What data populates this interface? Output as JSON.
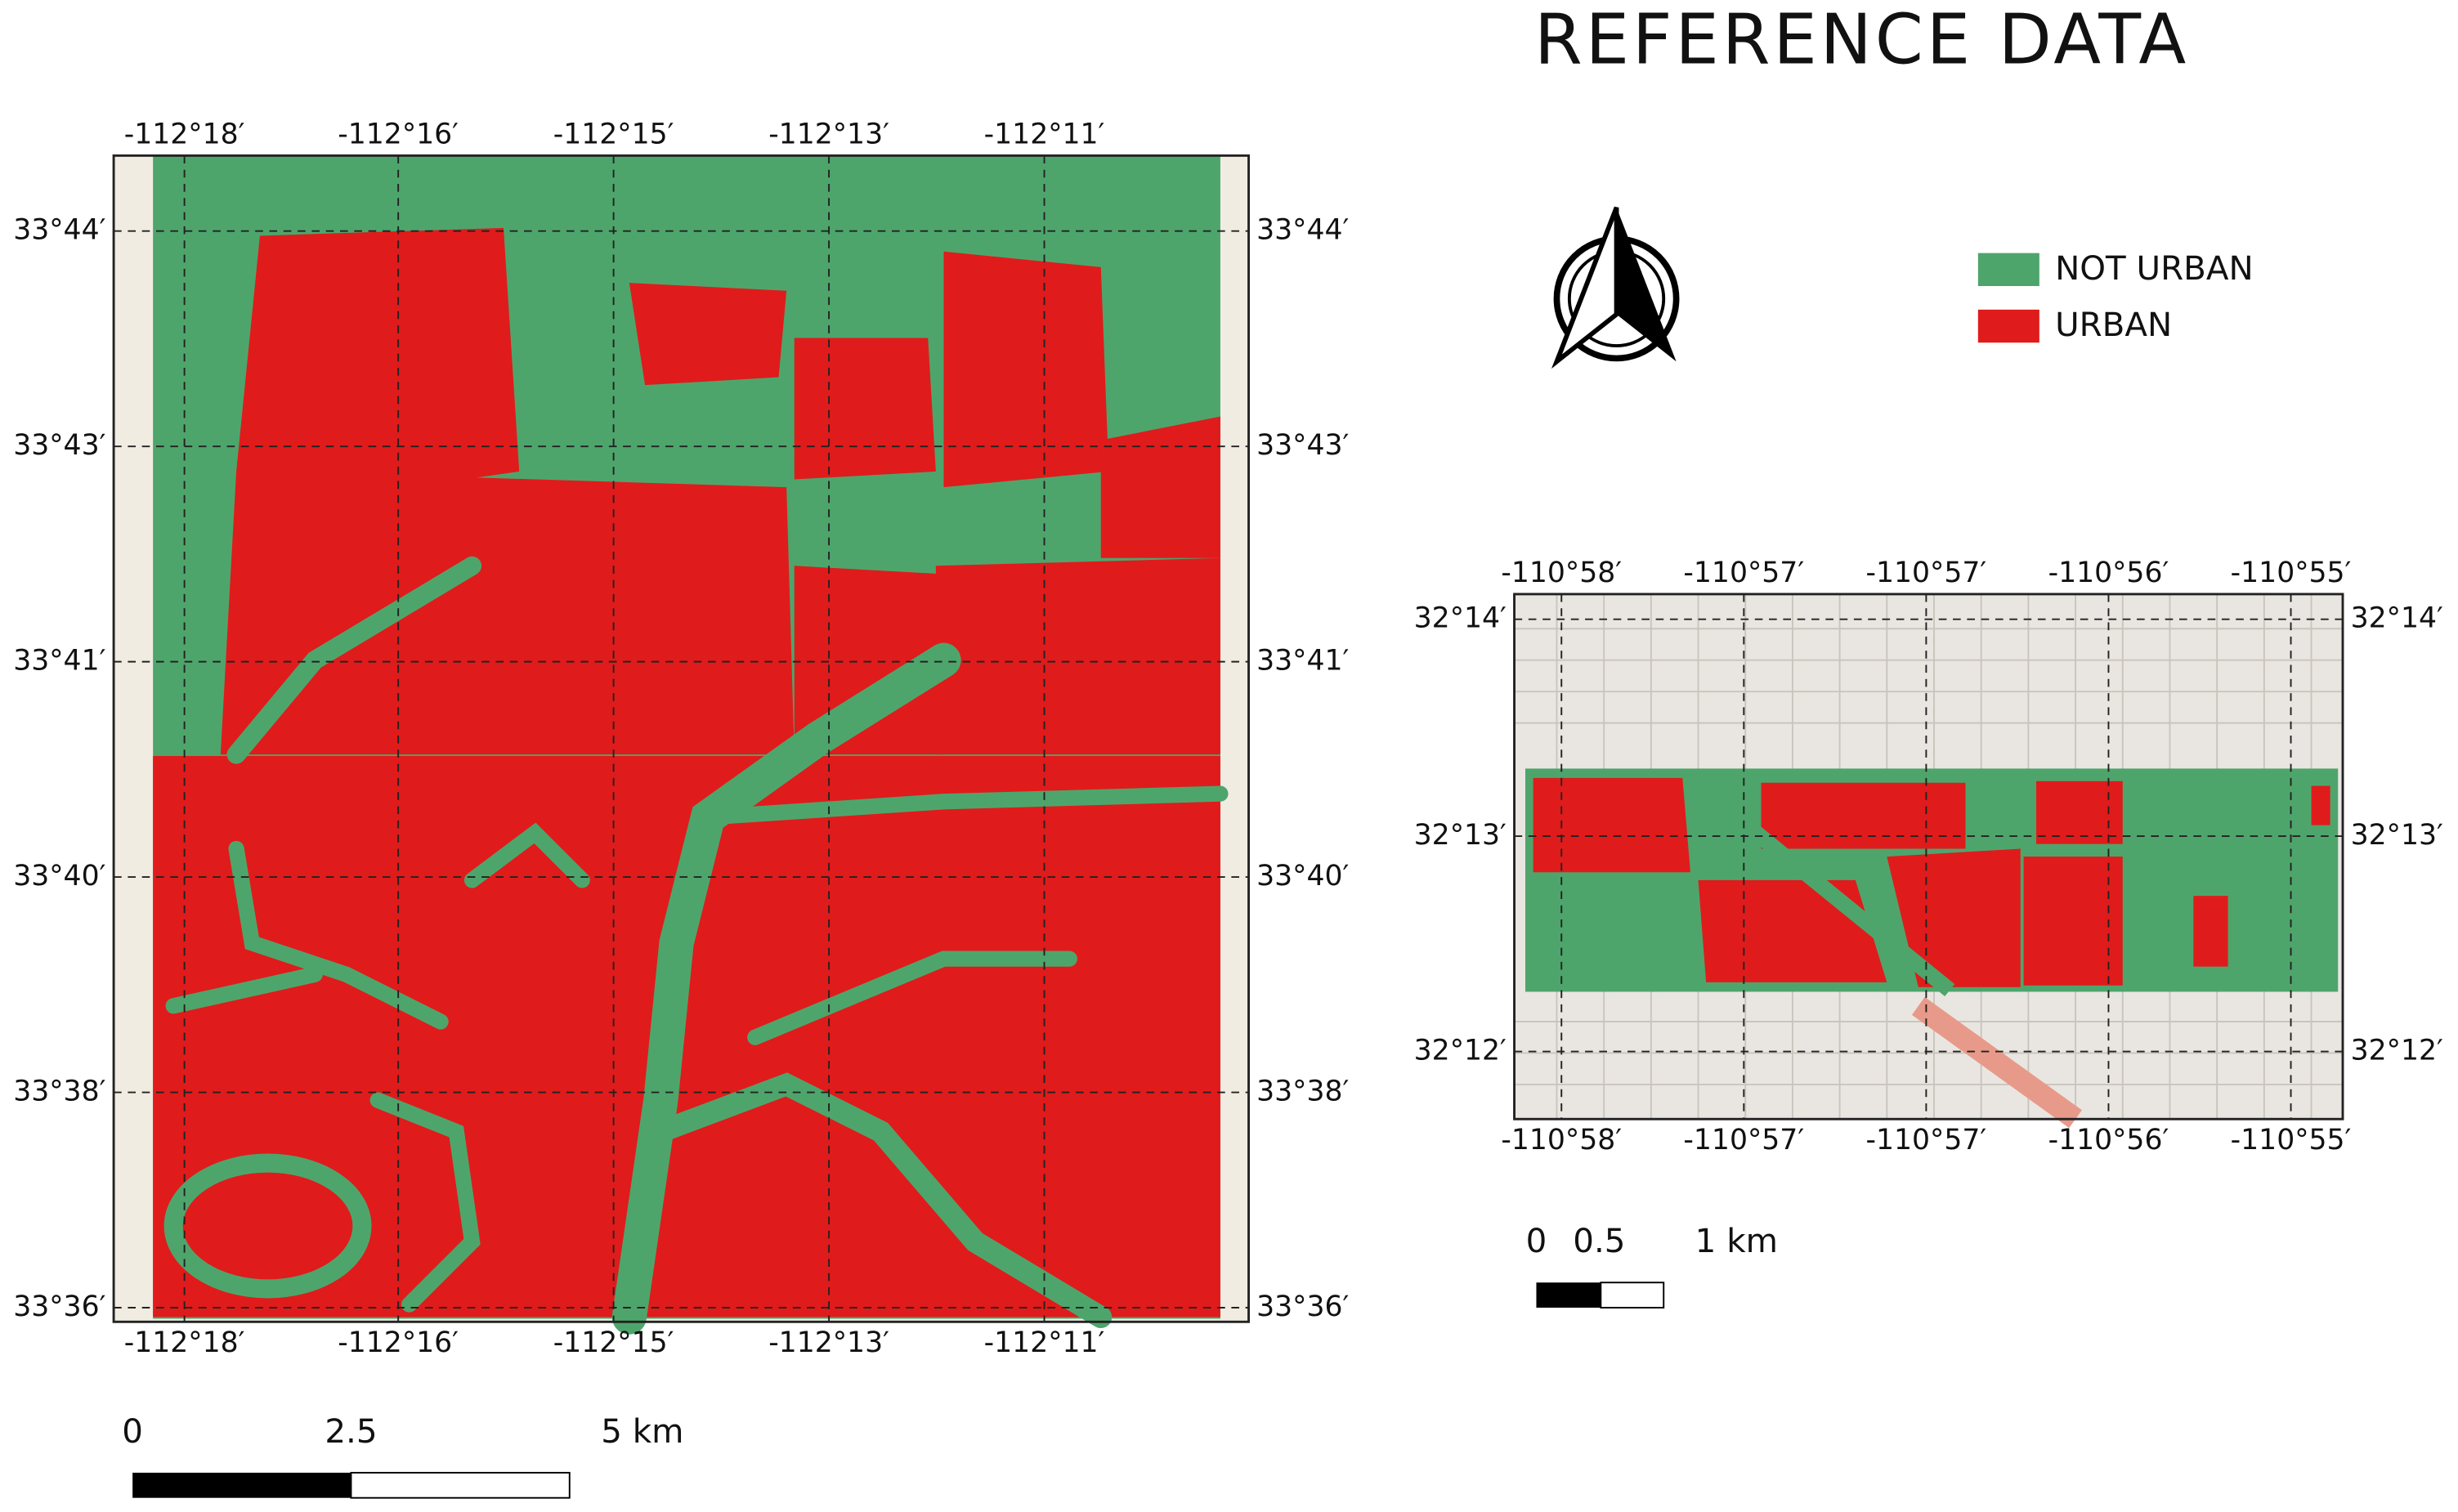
{
  "title": "REFERENCE DATA",
  "legend": [
    {
      "label": "NOT URBAN"
    },
    {
      "label": "URBAN"
    }
  ],
  "left_map": {
    "top_labels": [
      "-112°18′",
      "-112°16′",
      "-112°15′",
      "-112°13′",
      "-112°11′"
    ],
    "bottom_labels": [
      "-112°18′",
      "-112°16′",
      "-112°15′",
      "-112°13′",
      "-112°11′"
    ],
    "left_labels": [
      "33°44′",
      "33°43′",
      "33°41′",
      "33°40′",
      "33°38′",
      "33°36′"
    ],
    "right_labels": [
      "33°44′",
      "33°43′",
      "33°41′",
      "33°40′",
      "33°38′",
      "33°36′"
    ],
    "scale_labels": [
      "0",
      "2.5",
      "5 km"
    ]
  },
  "right_map": {
    "top_labels": [
      "-110°58′",
      "-110°57′",
      "-110°57′",
      "-110°56′",
      "-110°55′"
    ],
    "bottom_labels": [
      "-110°58′",
      "-110°57′",
      "-110°57′",
      "-110°56′",
      "-110°55′"
    ],
    "left_labels": [
      "32°14′",
      "32°13′",
      "32°12′"
    ],
    "right_labels": [
      "32°14′",
      "32°13′",
      "32°12′"
    ],
    "scale_labels": [
      "0",
      "0.5",
      "1 km"
    ]
  }
}
